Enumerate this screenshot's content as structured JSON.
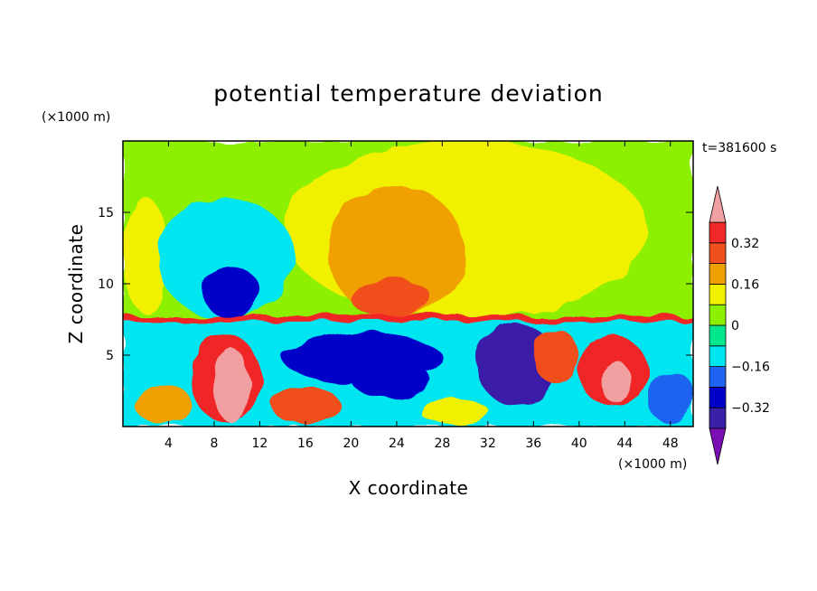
{
  "chart_data": {
    "type": "heatmap",
    "title": "potential temperature deviation",
    "xlabel": "X coordinate",
    "ylabel": "Z coordinate",
    "x_unit": "(×1000 m)",
    "y_unit": "(×1000 m)",
    "time_label": "t=381600 s",
    "xlim": [
      0,
      50
    ],
    "ylim": [
      0,
      20
    ],
    "x_ticks": [
      4,
      8,
      12,
      16,
      20,
      24,
      28,
      32,
      36,
      40,
      44,
      48
    ],
    "y_ticks": [
      5,
      10,
      15
    ],
    "colorbar": {
      "levels": [
        -0.4,
        -0.32,
        -0.24,
        -0.16,
        -0.08,
        0,
        0.08,
        0.16,
        0.24,
        0.32,
        0.4
      ],
      "labels": [
        "0.32",
        "0.16",
        "0",
        "−0.16",
        "−0.32"
      ],
      "label_values": [
        0.32,
        0.16,
        0,
        -0.16,
        -0.32
      ],
      "colors": [
        "#7a0fb4",
        "#3a1fa8",
        "#0000c8",
        "#1e64f0",
        "#00e6f0",
        "#00e68c",
        "#8cf000",
        "#f0f000",
        "#f0a000",
        "#f0501e",
        "#f02828",
        "#f0a0a0"
      ],
      "extend": "both"
    },
    "regions": [
      {
        "shape": "rect",
        "x": [
          0,
          50
        ],
        "z": [
          0,
          20
        ],
        "value": 0.04
      },
      {
        "shape": "ellipse",
        "x": [
          14,
          46
        ],
        "z": [
          7.6,
          20
        ],
        "value": 0.1
      },
      {
        "shape": "ellipse",
        "x": [
          0,
          4
        ],
        "z": [
          8,
          16
        ],
        "value": 0.1
      },
      {
        "shape": "ellipse",
        "x": [
          3,
          15
        ],
        "z": [
          7.6,
          16
        ],
        "value": -0.12
      },
      {
        "shape": "ellipse",
        "x": [
          18,
          30
        ],
        "z": [
          7.6,
          16.8
        ],
        "value": 0.2
      },
      {
        "shape": "ellipse",
        "x": [
          7,
          12
        ],
        "z": [
          7.6,
          11.2
        ],
        "value": -0.28
      },
      {
        "shape": "ellipse",
        "x": [
          20,
          27
        ],
        "z": [
          7.6,
          10.4
        ],
        "value": 0.26
      },
      {
        "shape": "rect",
        "x": [
          0,
          50
        ],
        "z": [
          0,
          7.6
        ],
        "value": -0.1
      },
      {
        "shape": "ellipse",
        "x": [
          6,
          12
        ],
        "z": [
          0.3,
          6.5
        ],
        "value": 0.34
      },
      {
        "shape": "ellipse",
        "x": [
          8,
          11
        ],
        "z": [
          0.3,
          5.5
        ],
        "value": 0.42
      },
      {
        "shape": "ellipse",
        "x": [
          40,
          46
        ],
        "z": [
          1.4,
          6.3
        ],
        "value": 0.34
      },
      {
        "shape": "ellipse",
        "x": [
          42,
          44.5
        ],
        "z": [
          1.6,
          4.6
        ],
        "value": 0.42
      },
      {
        "shape": "ellipse",
        "x": [
          14,
          28
        ],
        "z": [
          3.0,
          6.6
        ],
        "value": -0.3
      },
      {
        "shape": "ellipse",
        "x": [
          20,
          27
        ],
        "z": [
          2.0,
          4.6
        ],
        "value": -0.28
      },
      {
        "shape": "ellipse",
        "x": [
          31,
          38
        ],
        "z": [
          1.5,
          7.2
        ],
        "value": -0.36
      },
      {
        "shape": "ellipse",
        "x": [
          1,
          6
        ],
        "z": [
          0.2,
          3.0
        ],
        "value": 0.2
      },
      {
        "shape": "ellipse",
        "x": [
          13,
          19
        ],
        "z": [
          0.2,
          2.8
        ],
        "value": 0.24
      },
      {
        "shape": "ellipse",
        "x": [
          26,
          32
        ],
        "z": [
          0.2,
          2.0
        ],
        "value": 0.14
      },
      {
        "shape": "ellipse",
        "x": [
          46,
          50
        ],
        "z": [
          0.2,
          4.0
        ],
        "value": -0.2
      },
      {
        "shape": "ellipse",
        "x": [
          36,
          40
        ],
        "z": [
          3.0,
          6.8
        ],
        "value": 0.28
      },
      {
        "shape": "rect",
        "x": [
          0,
          50
        ],
        "z": [
          7.35,
          7.75
        ],
        "value": 0.36
      }
    ]
  }
}
